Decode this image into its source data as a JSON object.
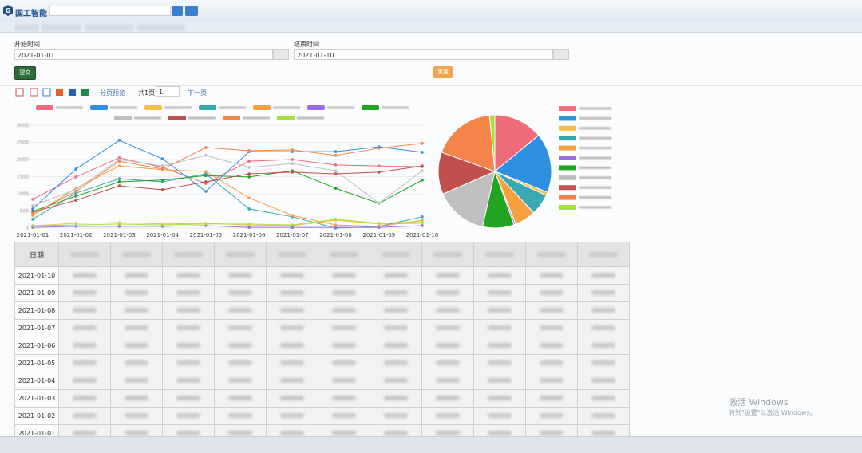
{
  "header": {
    "logo": "国工智能"
  },
  "form": {
    "start_label": "开始时间",
    "start_value": "2021-01-01",
    "end_label": "结束时间",
    "end_value": "2021-01-10",
    "submit": "提交",
    "reset": "重置"
  },
  "toolbar": {
    "preview": "分页预览",
    "pages": "共1页",
    "page": "1",
    "next": "下一页"
  },
  "chart_data": [
    {
      "type": "line",
      "categories": [
        "2021-01-01",
        "2021-01-02",
        "2021-01-03",
        "2021-01-04",
        "2021-01-05",
        "2021-01-06",
        "2021-01-07",
        "2021-01-08",
        "2021-01-09",
        "2021-01-10"
      ],
      "ylim": [
        0,
        3000
      ],
      "yticks": [
        0,
        500,
        1000,
        1500,
        2000,
        2500,
        3000
      ],
      "grid": true,
      "series": [
        {
          "color": "#f06b7c",
          "values": [
            840,
            1490,
            2050,
            1770,
            1300,
            1950,
            2000,
            1840,
            1810,
            1790
          ]
        },
        {
          "color": "#2f8fe0",
          "values": [
            560,
            1720,
            2560,
            2020,
            1070,
            2230,
            2230,
            2230,
            2370,
            2210
          ]
        },
        {
          "color": "#f5c04a",
          "values": [
            70,
            140,
            160,
            120,
            140,
            90,
            70,
            230,
            120,
            140
          ]
        },
        {
          "color": "#3aa8b0",
          "values": [
            260,
            1020,
            1440,
            1350,
            1580,
            560,
            330,
            0,
            50,
            330
          ]
        },
        {
          "color": "#f7a040",
          "values": [
            370,
            1160,
            1810,
            1700,
            1650,
            880,
            370,
            90,
            50,
            230
          ]
        },
        {
          "color": "#9b6ee8",
          "values": [
            20,
            50,
            50,
            50,
            70,
            20,
            20,
            20,
            20,
            70
          ]
        },
        {
          "color": "#22a322",
          "values": [
            490,
            930,
            1350,
            1400,
            1530,
            1490,
            1670,
            1160,
            720,
            1400
          ]
        },
        {
          "color": "#bfbfbf",
          "values": [
            650,
            1120,
            2000,
            1810,
            2120,
            1770,
            1880,
            1670,
            720,
            1670
          ]
        },
        {
          "color": "#c0504d",
          "values": [
            470,
            810,
            1230,
            1120,
            1350,
            1580,
            1630,
            1580,
            1630,
            1810
          ]
        },
        {
          "color": "#f5844a",
          "values": [
            420,
            1070,
            1950,
            1720,
            2350,
            2260,
            2280,
            2120,
            2330,
            2470
          ]
        },
        {
          "color": "#a6e03a",
          "values": [
            70,
            90,
            120,
            90,
            120,
            120,
            90,
            260,
            140,
            190
          ]
        }
      ]
    },
    {
      "type": "pie",
      "values": [
        14,
        17,
        1,
        6,
        6,
        0.5,
        9,
        15,
        12,
        18,
        1.5
      ],
      "colors": [
        "#f06b7c",
        "#2f8fe0",
        "#f5c04a",
        "#3aa8b0",
        "#f7a040",
        "#9b6ee8",
        "#22a322",
        "#bfbfbf",
        "#c0504d",
        "#f5844a",
        "#a6e03a"
      ]
    }
  ],
  "table": {
    "header": [
      "日期"
    ],
    "rows": [
      [
        "2021-01-10"
      ],
      [
        "2021-01-09"
      ],
      [
        "2021-01-08"
      ],
      [
        "2021-01-07"
      ],
      [
        "2021-01-06"
      ],
      [
        "2021-01-05"
      ],
      [
        "2021-01-04"
      ],
      [
        "2021-01-03"
      ],
      [
        "2021-01-02"
      ],
      [
        "2021-01-01"
      ]
    ]
  },
  "watermark": {
    "title": "激活 Windows",
    "hint": "转到\"设置\"以激活 Windows。"
  }
}
